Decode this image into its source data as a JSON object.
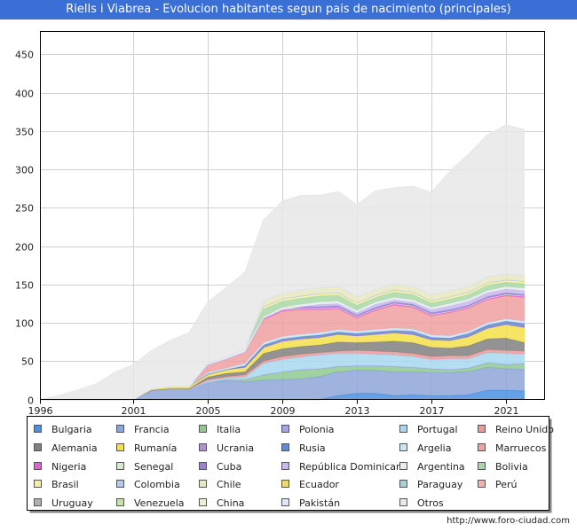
{
  "chart_data": {
    "type": "area",
    "title": "Riells i Viabrea - Evolucion habitantes segun pais de nacimiento (principales)",
    "credit": "http://www.foro-ciudad.com",
    "x": [
      1996,
      1997,
      1998,
      1999,
      2000,
      2001,
      2002,
      2003,
      2004,
      2005,
      2006,
      2007,
      2008,
      2009,
      2010,
      2011,
      2012,
      2013,
      2014,
      2015,
      2016,
      2017,
      2018,
      2019,
      2020,
      2021,
      2022
    ],
    "x_ticks": [
      1996,
      2001,
      2005,
      2009,
      2013,
      2017,
      2021
    ],
    "ylim": [
      0,
      480
    ],
    "y_ticks": [
      0,
      50,
      100,
      150,
      200,
      250,
      300,
      350,
      400,
      450
    ],
    "grid": true,
    "legend_position": "bottom",
    "series": [
      {
        "name": "Bulgaria",
        "color": "#4a90e2",
        "values": [
          0,
          0,
          0,
          0,
          0,
          0,
          0,
          0,
          0,
          0,
          0,
          0,
          0,
          0,
          0,
          0,
          5,
          8,
          8,
          5,
          6,
          5,
          5,
          6,
          12,
          12,
          11
        ]
      },
      {
        "name": "Francia",
        "color": "#8fa4d8",
        "values": [
          0,
          0,
          0,
          0,
          0,
          0,
          12,
          14,
          14,
          22,
          24,
          23,
          25,
          26,
          27,
          30,
          31,
          30,
          30,
          31,
          30,
          30,
          30,
          30,
          30,
          28,
          28
        ]
      },
      {
        "name": "Italia",
        "color": "#8fc98f",
        "values": [
          0,
          0,
          0,
          0,
          0,
          0,
          0,
          0,
          0,
          0,
          2,
          3,
          7,
          10,
          12,
          10,
          7,
          6,
          6,
          7,
          6,
          5,
          4,
          5,
          6,
          6,
          8
        ]
      },
      {
        "name": "Polonia",
        "color": "#a4a4e0",
        "values": [
          0,
          0,
          0,
          0,
          0,
          0,
          0,
          0,
          0,
          0,
          0,
          0,
          0,
          0,
          0,
          0,
          0,
          0,
          0,
          0,
          0,
          0,
          0,
          0,
          0,
          0,
          0
        ]
      },
      {
        "name": "Portugal",
        "color": "#a8d8f0",
        "values": [
          0,
          0,
          0,
          0,
          0,
          0,
          0,
          0,
          0,
          2,
          2,
          3,
          15,
          16,
          16,
          18,
          17,
          16,
          15,
          15,
          14,
          12,
          14,
          12,
          13,
          14,
          12
        ]
      },
      {
        "name": "Reino Unido",
        "color": "#e89a9a",
        "values": [
          0,
          0,
          0,
          0,
          0,
          0,
          0,
          0,
          0,
          2,
          2,
          3,
          3,
          4,
          4,
          3,
          3,
          4,
          4,
          4,
          4,
          4,
          4,
          4,
          4,
          4,
          4
        ]
      },
      {
        "name": "Alemania",
        "color": "#808080",
        "values": [
          0,
          0,
          0,
          0,
          0,
          0,
          0,
          0,
          0,
          3,
          4,
          4,
          10,
          10,
          10,
          10,
          12,
          10,
          12,
          14,
          14,
          12,
          10,
          13,
          14,
          16,
          11
        ]
      },
      {
        "name": "Rumanía",
        "color": "#f4e04a",
        "values": [
          0,
          0,
          0,
          0,
          0,
          0,
          2,
          3,
          3,
          4,
          5,
          6,
          8,
          10,
          10,
          10,
          10,
          9,
          10,
          11,
          11,
          10,
          10,
          12,
          14,
          18,
          20
        ]
      },
      {
        "name": "Ucrania",
        "color": "#b090d8",
        "values": [
          0,
          0,
          0,
          0,
          0,
          0,
          0,
          0,
          0,
          0,
          0,
          0,
          0,
          0,
          0,
          0,
          0,
          0,
          0,
          0,
          0,
          0,
          0,
          0,
          0,
          0,
          0
        ]
      },
      {
        "name": "Rusia",
        "color": "#6a86d0",
        "values": [
          0,
          0,
          0,
          0,
          0,
          0,
          0,
          0,
          0,
          0,
          0,
          2,
          3,
          3,
          3,
          3,
          3,
          3,
          3,
          3,
          4,
          3,
          3,
          4,
          4,
          4,
          5
        ]
      },
      {
        "name": "Argelia",
        "color": "#c8e8f4",
        "values": [
          0,
          0,
          0,
          0,
          0,
          0,
          0,
          0,
          0,
          2,
          2,
          3,
          3,
          3,
          3,
          3,
          3,
          3,
          3,
          3,
          3,
          3,
          3,
          3,
          3,
          3,
          3
        ]
      },
      {
        "name": "Marruecos",
        "color": "#f0a0a0",
        "values": [
          0,
          0,
          0,
          0,
          0,
          0,
          0,
          0,
          0,
          10,
          12,
          15,
          30,
          33,
          32,
          30,
          27,
          17,
          25,
          30,
          28,
          25,
          30,
          30,
          30,
          30,
          31
        ]
      },
      {
        "name": "Nigeria",
        "color": "#e060d8",
        "values": [
          0,
          0,
          0,
          0,
          0,
          0,
          0,
          0,
          0,
          0,
          0,
          0,
          2,
          2,
          2,
          2,
          2,
          2,
          2,
          2,
          2,
          2,
          2,
          2,
          2,
          2,
          2
        ]
      },
      {
        "name": "Senegal",
        "color": "#d8e8d0",
        "values": [
          0,
          0,
          0,
          0,
          0,
          0,
          0,
          0,
          0,
          0,
          0,
          0,
          0,
          0,
          0,
          0,
          0,
          0,
          0,
          0,
          0,
          0,
          0,
          0,
          0,
          0,
          0
        ]
      },
      {
        "name": "Cuba",
        "color": "#9a80d8",
        "values": [
          0,
          0,
          0,
          0,
          0,
          0,
          0,
          0,
          0,
          0,
          0,
          0,
          0,
          0,
          2,
          2,
          2,
          2,
          2,
          2,
          2,
          2,
          2,
          2,
          2,
          2,
          2
        ]
      },
      {
        "name": "República Dominicana",
        "color": "#c8b8ec",
        "values": [
          0,
          0,
          0,
          0,
          0,
          0,
          0,
          0,
          0,
          0,
          0,
          0,
          0,
          0,
          0,
          3,
          3,
          3,
          4,
          3,
          3,
          4,
          5,
          5,
          5,
          5,
          5
        ]
      },
      {
        "name": "Argentina",
        "color": "#e8ecf0",
        "values": [
          0,
          0,
          0,
          0,
          0,
          0,
          0,
          0,
          0,
          2,
          3,
          4,
          2,
          3,
          3,
          3,
          3,
          3,
          3,
          3,
          3,
          3,
          3,
          3,
          3,
          3,
          3
        ]
      },
      {
        "name": "Bolivia",
        "color": "#a8d8a8",
        "values": [
          0,
          0,
          0,
          0,
          0,
          0,
          0,
          0,
          0,
          0,
          0,
          0,
          10,
          8,
          8,
          8,
          8,
          7,
          6,
          7,
          7,
          6,
          6,
          6,
          7,
          6,
          6
        ]
      },
      {
        "name": "Brasil",
        "color": "#f8f0a0",
        "values": [
          0,
          0,
          0,
          0,
          0,
          0,
          0,
          0,
          0,
          0,
          0,
          0,
          3,
          3,
          3,
          3,
          3,
          3,
          3,
          3,
          3,
          3,
          3,
          3,
          3,
          3,
          3
        ]
      },
      {
        "name": "Colombia",
        "color": "#b8c8e8",
        "values": [
          0,
          0,
          0,
          0,
          0,
          0,
          0,
          0,
          0,
          0,
          0,
          0,
          0,
          0,
          0,
          0,
          0,
          0,
          0,
          0,
          0,
          0,
          0,
          0,
          0,
          0,
          0
        ]
      },
      {
        "name": "Chile",
        "color": "#e8e8c0",
        "values": [
          0,
          0,
          0,
          0,
          0,
          0,
          0,
          0,
          0,
          0,
          0,
          0,
          8,
          8,
          8,
          8,
          9,
          8,
          8,
          8,
          8,
          8,
          8,
          8,
          8,
          8,
          8
        ]
      },
      {
        "name": "Ecuador",
        "color": "#f0d870",
        "values": [
          0,
          0,
          0,
          0,
          0,
          0,
          0,
          0,
          0,
          0,
          0,
          0,
          0,
          0,
          0,
          0,
          0,
          0,
          0,
          0,
          0,
          0,
          0,
          0,
          0,
          0,
          0
        ]
      },
      {
        "name": "Paraguay",
        "color": "#a8d0d8",
        "values": [
          0,
          0,
          0,
          0,
          0,
          0,
          0,
          0,
          0,
          0,
          0,
          0,
          0,
          0,
          0,
          0,
          0,
          0,
          0,
          0,
          0,
          0,
          0,
          0,
          0,
          0,
          0
        ]
      },
      {
        "name": "Perú",
        "color": "#f4b0b0",
        "values": [
          0,
          0,
          0,
          0,
          0,
          0,
          0,
          0,
          0,
          0,
          0,
          0,
          0,
          0,
          0,
          0,
          0,
          0,
          0,
          0,
          0,
          0,
          0,
          0,
          0,
          0,
          0
        ]
      },
      {
        "name": "Uruguay",
        "color": "#b0b0b0",
        "values": [
          0,
          0,
          0,
          0,
          0,
          0,
          0,
          0,
          0,
          0,
          0,
          0,
          0,
          0,
          0,
          0,
          0,
          0,
          0,
          0,
          0,
          0,
          0,
          0,
          0,
          0,
          0
        ]
      },
      {
        "name": "Venezuela",
        "color": "#c8e0b0",
        "values": [
          0,
          0,
          0,
          0,
          0,
          0,
          0,
          0,
          0,
          0,
          0,
          0,
          0,
          0,
          0,
          0,
          0,
          0,
          0,
          0,
          0,
          0,
          0,
          0,
          0,
          0,
          0
        ]
      },
      {
        "name": "China",
        "color": "#eeeed0",
        "values": [
          0,
          0,
          0,
          0,
          0,
          0,
          0,
          0,
          0,
          0,
          0,
          0,
          0,
          0,
          0,
          0,
          0,
          0,
          0,
          0,
          0,
          0,
          0,
          0,
          0,
          0,
          0
        ]
      },
      {
        "name": "Pakistán",
        "color": "#dce8f8",
        "values": [
          0,
          0,
          0,
          0,
          0,
          0,
          0,
          0,
          0,
          0,
          0,
          0,
          0,
          0,
          0,
          0,
          0,
          0,
          0,
          0,
          0,
          0,
          0,
          0,
          0,
          0,
          0
        ]
      },
      {
        "name": "Otros",
        "color": "#e8e8e8",
        "values": [
          0,
          5,
          12,
          20,
          35,
          45,
          50,
          60,
          70,
          80,
          90,
          100,
          105,
          120,
          123,
          120,
          123,
          120,
          128,
          125,
          130,
          133,
          156,
          172,
          185,
          194,
          190
        ]
      }
    ]
  }
}
